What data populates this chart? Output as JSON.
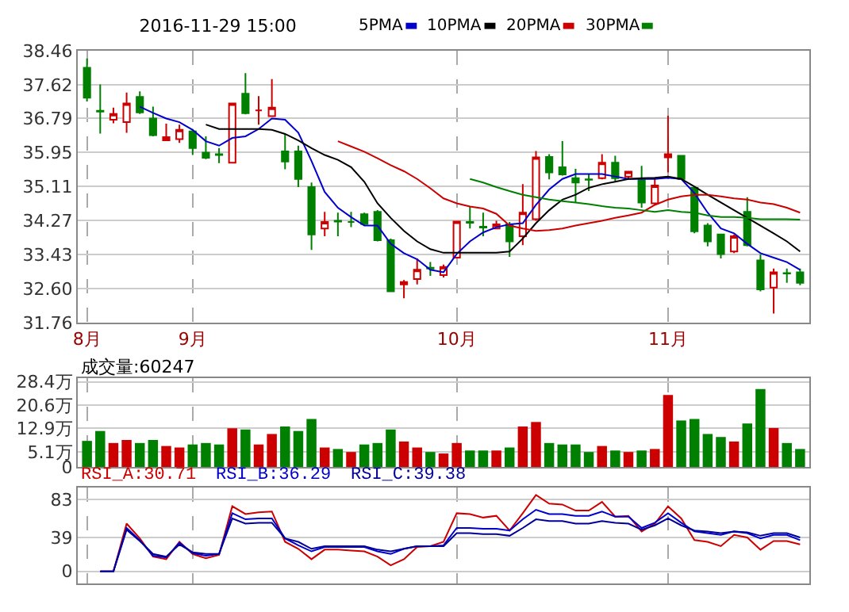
{
  "chart_data": [
    {
      "type": "candlestick",
      "title": "2016-11-29 15:00",
      "categories": [
        "8月",
        null,
        null,
        null,
        null,
        null,
        null,
        null,
        "9月",
        null,
        null,
        null,
        null,
        null,
        null,
        null,
        null,
        null,
        null,
        null,
        null,
        null,
        null,
        null,
        null,
        null,
        null,
        null,
        "10月",
        null,
        null,
        null,
        null,
        null,
        null,
        null,
        null,
        null,
        null,
        null,
        null,
        null,
        null,
        null,
        "11月",
        null,
        null,
        null,
        null,
        null,
        null,
        null,
        null,
        null,
        null
      ],
      "ohlc": [
        [
          38.04,
          38.27,
          37.21,
          37.3
        ],
        [
          36.98,
          37.63,
          36.42,
          36.96
        ],
        [
          36.76,
          37.06,
          36.67,
          36.9
        ],
        [
          36.7,
          37.43,
          36.44,
          37.16
        ],
        [
          37.32,
          37.46,
          36.9,
          36.94
        ],
        [
          36.79,
          37.08,
          36.35,
          36.38
        ],
        [
          36.25,
          36.66,
          36.23,
          36.33
        ],
        [
          36.28,
          36.64,
          36.19,
          36.51
        ],
        [
          36.47,
          36.53,
          35.89,
          36.06
        ],
        [
          35.95,
          36.35,
          35.79,
          35.82
        ],
        [
          35.91,
          36.06,
          35.69,
          35.89
        ],
        [
          35.7,
          37.16,
          35.7,
          37.16
        ],
        [
          37.4,
          37.91,
          36.89,
          36.92
        ],
        [
          36.99,
          37.34,
          36.64,
          36.99
        ],
        [
          36.85,
          37.76,
          36.83,
          37.06
        ],
        [
          35.98,
          36.41,
          35.54,
          35.73
        ],
        [
          35.98,
          36.12,
          35.1,
          35.3
        ],
        [
          35.1,
          35.21,
          33.55,
          33.93
        ],
        [
          34.08,
          34.49,
          33.89,
          34.24
        ],
        [
          34.27,
          34.47,
          33.89,
          34.25
        ],
        [
          34.24,
          34.49,
          34.11,
          34.24
        ],
        [
          34.43,
          34.47,
          34.15,
          34.19
        ],
        [
          34.49,
          34.53,
          33.76,
          33.79
        ],
        [
          33.79,
          33.83,
          32.53,
          32.53
        ],
        [
          32.7,
          32.81,
          32.36,
          32.76
        ],
        [
          32.83,
          33.34,
          32.7,
          33.06
        ],
        [
          33.11,
          33.25,
          32.91,
          33.09
        ],
        [
          32.93,
          33.19,
          32.87,
          33.13
        ],
        [
          33.36,
          34.25,
          33.36,
          34.25
        ],
        [
          34.24,
          34.62,
          34.08,
          34.22
        ],
        [
          34.12,
          34.47,
          33.89,
          34.1
        ],
        [
          34.08,
          34.27,
          34.06,
          34.18
        ],
        [
          34.18,
          34.24,
          33.38,
          33.76
        ],
        [
          33.89,
          35.17,
          33.67,
          34.47
        ],
        [
          34.31,
          35.99,
          34.27,
          35.83
        ],
        [
          35.84,
          35.91,
          35.29,
          35.46
        ],
        [
          35.59,
          36.23,
          35.38,
          35.41
        ],
        [
          35.32,
          35.55,
          34.72,
          35.21
        ],
        [
          35.29,
          35.42,
          35.0,
          35.28
        ],
        [
          35.32,
          35.91,
          35.29,
          35.7
        ],
        [
          35.7,
          35.87,
          35.23,
          35.32
        ],
        [
          35.36,
          35.48,
          35.29,
          35.48
        ],
        [
          35.27,
          35.62,
          34.59,
          34.72
        ],
        [
          34.7,
          35.3,
          34.66,
          35.14
        ],
        [
          35.83,
          36.86,
          35.46,
          35.91
        ],
        [
          35.87,
          35.89,
          35.3,
          35.3
        ],
        [
          35.08,
          35.1,
          33.96,
          34.01
        ],
        [
          34.15,
          34.21,
          33.64,
          33.76
        ],
        [
          33.93,
          33.95,
          33.34,
          33.45
        ],
        [
          33.51,
          33.93,
          33.47,
          33.89
        ],
        [
          34.49,
          34.85,
          33.64,
          33.67
        ],
        [
          33.29,
          33.44,
          32.53,
          32.58
        ],
        [
          32.62,
          33.09,
          31.98,
          33.0
        ],
        [
          32.98,
          33.09,
          32.74,
          32.97
        ],
        [
          33.0,
          33.09,
          32.68,
          32.74
        ]
      ],
      "series": [
        {
          "type": "line",
          "name": "5PMA",
          "color": "#0000cc",
          "values": [
            null,
            null,
            null,
            null,
            37.08,
            36.93,
            36.79,
            36.7,
            36.51,
            36.23,
            36.12,
            36.31,
            36.35,
            36.53,
            36.79,
            36.76,
            36.44,
            35.74,
            34.98,
            34.59,
            34.36,
            34.15,
            34.15,
            33.7,
            33.47,
            33.32,
            33.06,
            33.0,
            33.45,
            33.76,
            33.98,
            34.11,
            34.18,
            34.21,
            34.66,
            35.04,
            35.3,
            35.42,
            35.42,
            35.42,
            35.36,
            35.3,
            35.3,
            35.3,
            35.33,
            35.3,
            34.95,
            34.47,
            34.08,
            33.96,
            33.7,
            33.47,
            33.36,
            33.25,
            33.06
          ]
        },
        {
          "type": "line",
          "name": "10PMA",
          "color": "#000000",
          "values": [
            null,
            null,
            null,
            null,
            null,
            null,
            null,
            null,
            null,
            36.64,
            36.53,
            36.53,
            36.53,
            36.53,
            36.51,
            36.41,
            36.25,
            36.06,
            35.89,
            35.77,
            35.59,
            35.23,
            34.7,
            34.34,
            34.02,
            33.76,
            33.57,
            33.48,
            33.48,
            33.48,
            33.48,
            33.48,
            33.51,
            33.83,
            34.21,
            34.53,
            34.79,
            34.91,
            35.08,
            35.17,
            35.23,
            35.3,
            35.32,
            35.33,
            35.36,
            35.3,
            35.11,
            34.91,
            34.72,
            34.53,
            34.34,
            34.15,
            33.96,
            33.76,
            33.51
          ]
        },
        {
          "type": "line",
          "name": "20PMA",
          "color": "#cc0000",
          "values": [
            null,
            null,
            null,
            null,
            null,
            null,
            null,
            null,
            null,
            null,
            null,
            null,
            null,
            null,
            null,
            null,
            null,
            null,
            null,
            36.23,
            36.1,
            35.97,
            35.81,
            35.64,
            35.49,
            35.3,
            35.07,
            34.82,
            34.7,
            34.62,
            34.57,
            34.44,
            34.15,
            34.08,
            34.02,
            34.04,
            34.08,
            34.15,
            34.21,
            34.27,
            34.34,
            34.4,
            34.47,
            34.66,
            34.79,
            34.87,
            34.91,
            34.91,
            34.87,
            34.82,
            34.79,
            34.72,
            34.68,
            34.59,
            34.47
          ]
        },
        {
          "type": "line",
          "name": "30PMA",
          "color": "#008000",
          "values": [
            null,
            null,
            null,
            null,
            null,
            null,
            null,
            null,
            null,
            null,
            null,
            null,
            null,
            null,
            null,
            null,
            null,
            null,
            null,
            null,
            null,
            null,
            null,
            null,
            null,
            null,
            null,
            null,
            null,
            35.3,
            35.21,
            35.1,
            35.0,
            34.91,
            34.85,
            34.79,
            34.75,
            34.72,
            34.68,
            34.63,
            34.59,
            34.57,
            34.53,
            34.49,
            34.53,
            34.49,
            34.47,
            34.4,
            34.36,
            34.36,
            34.34,
            34.31,
            34.31,
            34.31,
            34.3
          ]
        }
      ],
      "ylim": [
        31.76,
        38.46
      ],
      "yticks": [
        31.76,
        {
          "value": 32.6,
          "label": "32.60"
        },
        33.43,
        34.27,
        35.11,
        35.95,
        36.79,
        37.62,
        38.46
      ],
      "grid": true,
      "legend": "top"
    },
    {
      "type": "bar",
      "title": "成交量:60247",
      "categories": [
        null,
        null,
        null,
        null,
        null,
        null,
        null,
        null,
        null,
        null,
        null,
        null,
        null,
        null,
        null,
        null,
        null,
        null,
        null,
        null,
        null,
        null,
        null,
        null,
        null,
        null,
        null,
        null,
        null,
        null,
        null,
        null,
        null,
        null,
        null,
        null,
        null,
        null,
        null,
        null,
        null,
        null,
        null,
        null,
        null,
        null,
        null,
        null,
        null,
        null,
        null,
        null,
        null,
        null,
        null
      ],
      "values": [
        8.7,
        12,
        8,
        9,
        8,
        9,
        7,
        6.5,
        7.5,
        8,
        7.5,
        12.9,
        12.5,
        7.5,
        11,
        13.5,
        12,
        16,
        6.5,
        6,
        5,
        7.5,
        8,
        12.5,
        8.5,
        6.5,
        5,
        4.5,
        8,
        5.5,
        5.5,
        5.5,
        6.5,
        13.5,
        15,
        8,
        7.5,
        7.5,
        5,
        7,
        5.5,
        5,
        5.5,
        6,
        24,
        15.5,
        16,
        11,
        10,
        8.5,
        14.5,
        26,
        13,
        8,
        6
      ],
      "colors": [
        "#008000",
        "#008000",
        "#cc0000",
        "#cc0000",
        "#008000",
        "#008000",
        "#cc0000",
        "#cc0000",
        "#008000",
        "#008000",
        "#008000",
        "#cc0000",
        "#008000",
        "#cc0000",
        "#cc0000",
        "#008000",
        "#008000",
        "#008000",
        "#cc0000",
        "#008000",
        "#cc0000",
        "#008000",
        "#008000",
        "#008000",
        "#cc0000",
        "#cc0000",
        "#008000",
        "#cc0000",
        "#cc0000",
        "#008000",
        "#008000",
        "#cc0000",
        "#008000",
        "#cc0000",
        "#cc0000",
        "#008000",
        "#008000",
        "#008000",
        "#008000",
        "#cc0000",
        "#008000",
        "#cc0000",
        "#008000",
        "#cc0000",
        "#cc0000",
        "#008000",
        "#008000",
        "#008000",
        "#008000",
        "#cc0000",
        "#008000",
        "#008000",
        "#cc0000",
        "#008000",
        "#008000"
      ],
      "ylim": [
        0,
        29.5
      ],
      "yticks": [
        0,
        {
          "value": 5.1,
          "label": "5.1万"
        },
        {
          "value": 12.9,
          "label": "12.9万"
        },
        {
          "value": 20.6,
          "label": "20.6万"
        },
        {
          "value": 28.4,
          "label": "28.4万"
        }
      ],
      "grid": true,
      "tick_labels": "y"
    },
    {
      "type": "line",
      "categories": [
        null,
        null,
        null,
        null,
        null,
        null,
        null,
        null,
        null,
        null,
        null,
        null,
        null,
        null,
        null,
        null,
        null,
        null,
        null,
        null,
        null,
        null,
        null,
        null,
        null,
        null,
        null,
        null,
        null,
        null,
        null,
        null,
        null,
        null,
        null,
        null,
        null,
        null,
        null,
        null,
        null,
        null,
        null,
        null,
        null,
        null,
        null,
        null,
        null,
        null,
        null,
        null,
        null,
        null,
        null
      ],
      "series": [
        {
          "name": "RSI_A:30.71",
          "color": "#cc0000",
          "values": [
            null,
            0,
            0,
            55,
            38,
            17,
            14,
            34,
            20,
            15,
            19,
            75,
            66,
            68,
            69,
            34,
            26,
            14,
            25,
            25,
            24,
            23,
            17,
            7,
            14,
            28,
            29,
            34,
            67,
            66,
            62,
            64,
            47,
            67,
            88,
            78,
            77,
            70,
            70,
            80,
            63,
            64,
            46,
            55,
            75,
            61,
            36,
            34,
            29,
            42,
            39,
            25,
            35,
            35,
            31
          ]
        },
        {
          "name": "RSI_B:36.29",
          "color": "#0000cc",
          "values": [
            null,
            0,
            0,
            50,
            36,
            18,
            16,
            33,
            21,
            18,
            20,
            67,
            60,
            61,
            61,
            38,
            30,
            23,
            28,
            28,
            28,
            28,
            23,
            20,
            26,
            29,
            29,
            30,
            50,
            50,
            49,
            49,
            47,
            60,
            71,
            66,
            66,
            64,
            64,
            69,
            63,
            63,
            50,
            56,
            67,
            56,
            46,
            44,
            42,
            46,
            44,
            38,
            42,
            42,
            36
          ]
        },
        {
          "name": "RSI_C:39.38",
          "color": "#000099",
          "values": [
            null,
            0,
            0,
            48,
            35,
            20,
            17,
            31,
            22,
            20,
            20,
            61,
            55,
            56,
            56,
            38,
            34,
            26,
            29,
            29,
            29,
            29,
            25,
            23,
            26,
            29,
            29,
            29,
            44,
            44,
            43,
            43,
            41,
            50,
            60,
            58,
            58,
            55,
            55,
            58,
            56,
            55,
            48,
            53,
            61,
            53,
            47,
            46,
            44,
            46,
            45,
            41,
            44,
            44,
            39
          ]
        }
      ],
      "ylim": [
        -14,
        97
      ],
      "yticks": [
        0,
        39,
        83
      ],
      "grid": true,
      "tick_labels": "y"
    }
  ]
}
